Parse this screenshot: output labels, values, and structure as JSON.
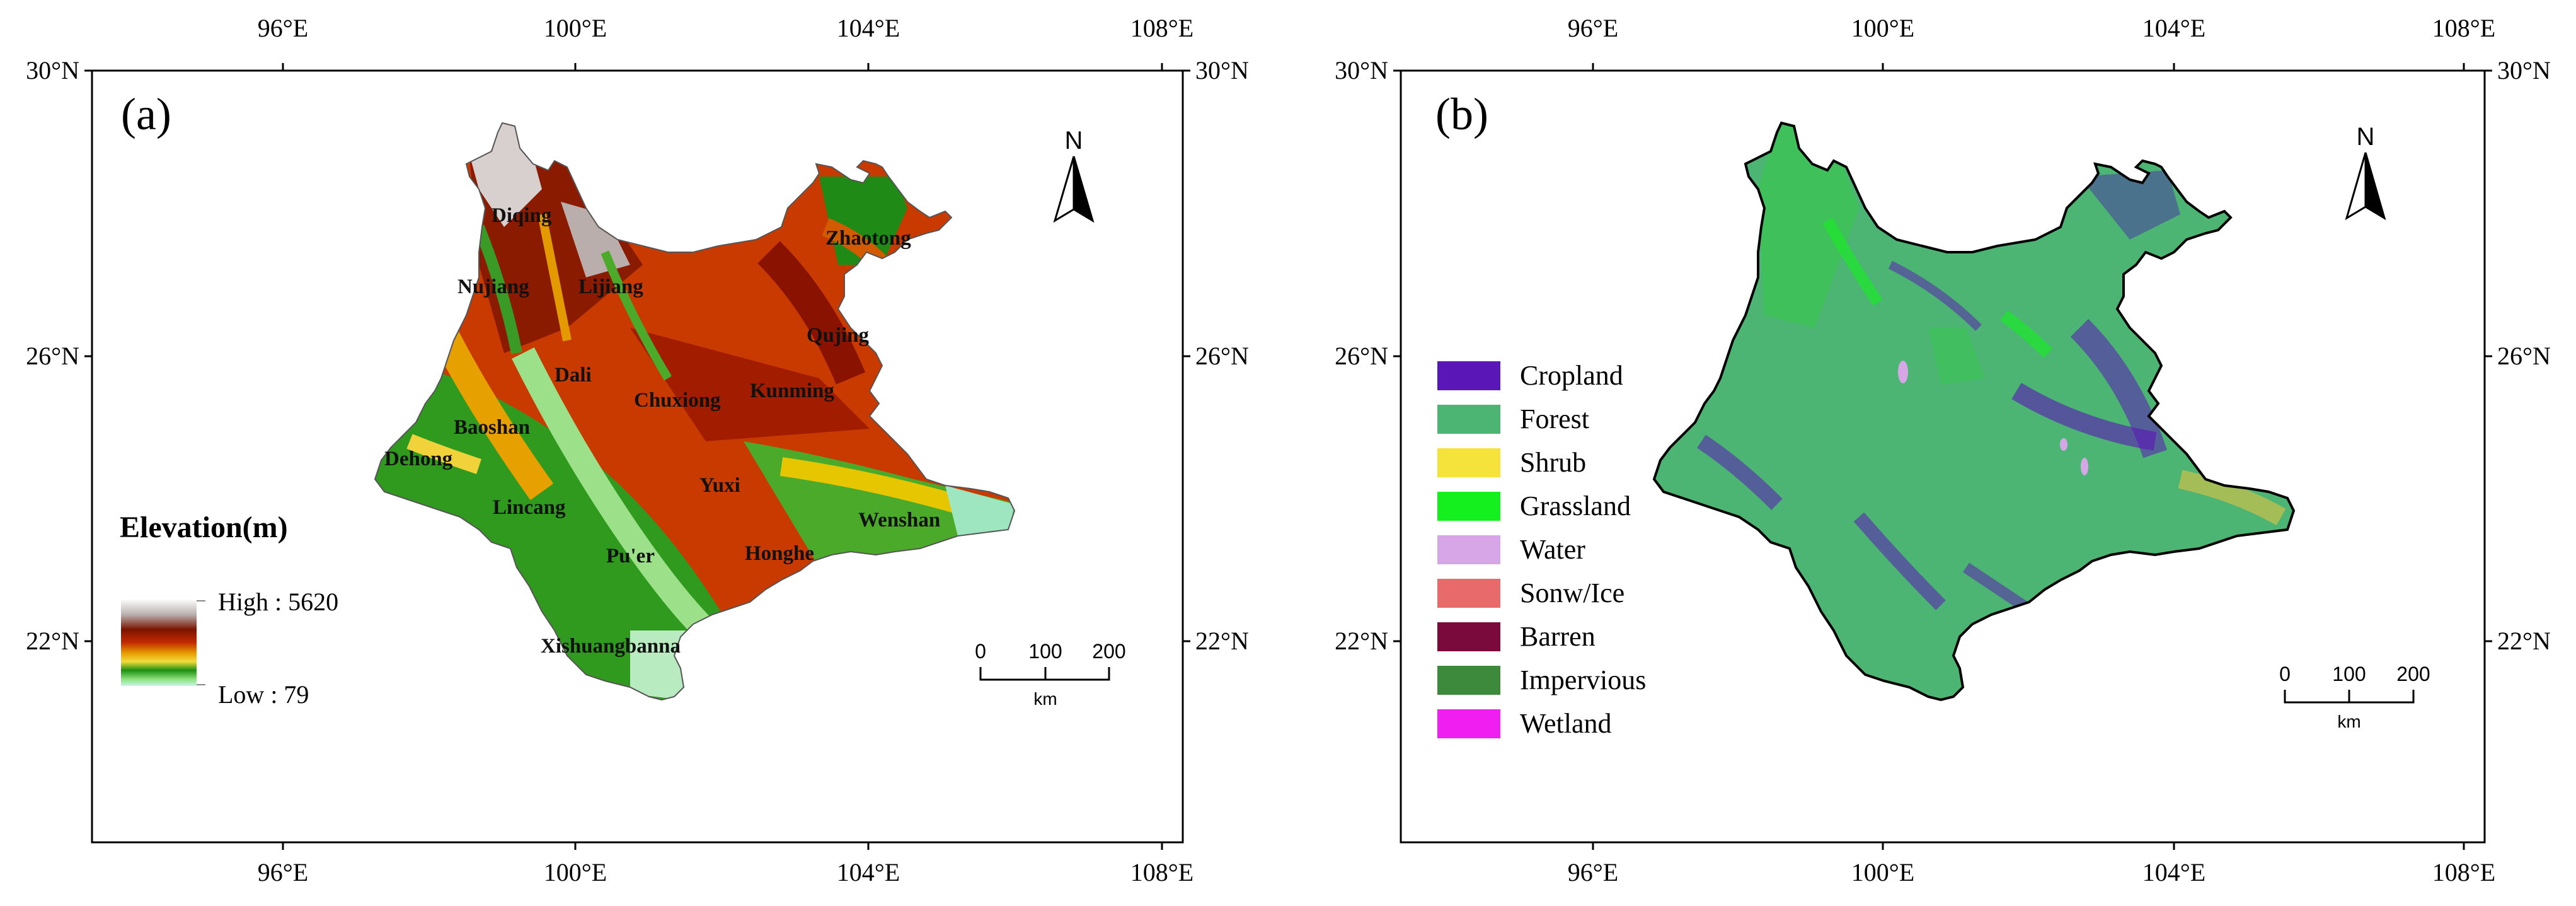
{
  "panel_a": {
    "label": "(a)",
    "top_lon_ticks": [
      "96°E",
      "100°E",
      "104°E",
      "108°E"
    ],
    "bottom_lon_ticks": [
      "96°E",
      "100°E",
      "104°E",
      "108°E"
    ],
    "left_lat_ticks": [
      "30°N",
      "26°N",
      "22°N"
    ],
    "right_lat_ticks": [
      "30°N",
      "26°N",
      "22°N"
    ],
    "north_label": "N",
    "legend": {
      "title": "Elevation(m)",
      "high": "High : 5620",
      "low": "Low : 79"
    },
    "scale": {
      "zero": "0",
      "mid": "100",
      "max": "200",
      "unit": "km"
    },
    "cities": [
      "Diqing",
      "Zhaotong",
      "Nujiang",
      "Lijiang",
      "Qujing",
      "Dali",
      "Chuxiong",
      "Kunming",
      "Baoshan",
      "Dehong",
      "Yuxi",
      "Lincang",
      "Wenshan",
      "Pu'er",
      "Honghe",
      "Xishuangbanna"
    ]
  },
  "panel_b": {
    "label": "(b)",
    "top_lon_ticks": [
      "96°E",
      "100°E",
      "104°E",
      "108°E"
    ],
    "bottom_lon_ticks": [
      "96°E",
      "100°E",
      "104°E",
      "108°E"
    ],
    "left_lat_ticks": [
      "30°N",
      "26°N",
      "22°N"
    ],
    "right_lat_ticks": [
      "30°N",
      "26°N",
      "22°N"
    ],
    "north_label": "N",
    "legend": [
      {
        "label": "Cropland",
        "color": "#5b16b8"
      },
      {
        "label": "Forest",
        "color": "#4db573"
      },
      {
        "label": "Shrub",
        "color": "#f5e23a"
      },
      {
        "label": "Grassland",
        "color": "#14f01e"
      },
      {
        "label": "Water",
        "color": "#d7a6e6"
      },
      {
        "label": "Sonw/Ice",
        "color": "#e86a6a"
      },
      {
        "label": "Barren",
        "color": "#7a0a3c"
      },
      {
        "label": "Impervious",
        "color": "#3e8a3c"
      },
      {
        "label": "Wetland",
        "color": "#f01ef0"
      }
    ],
    "scale": {
      "zero": "0",
      "mid": "100",
      "max": "200",
      "unit": "km"
    }
  }
}
